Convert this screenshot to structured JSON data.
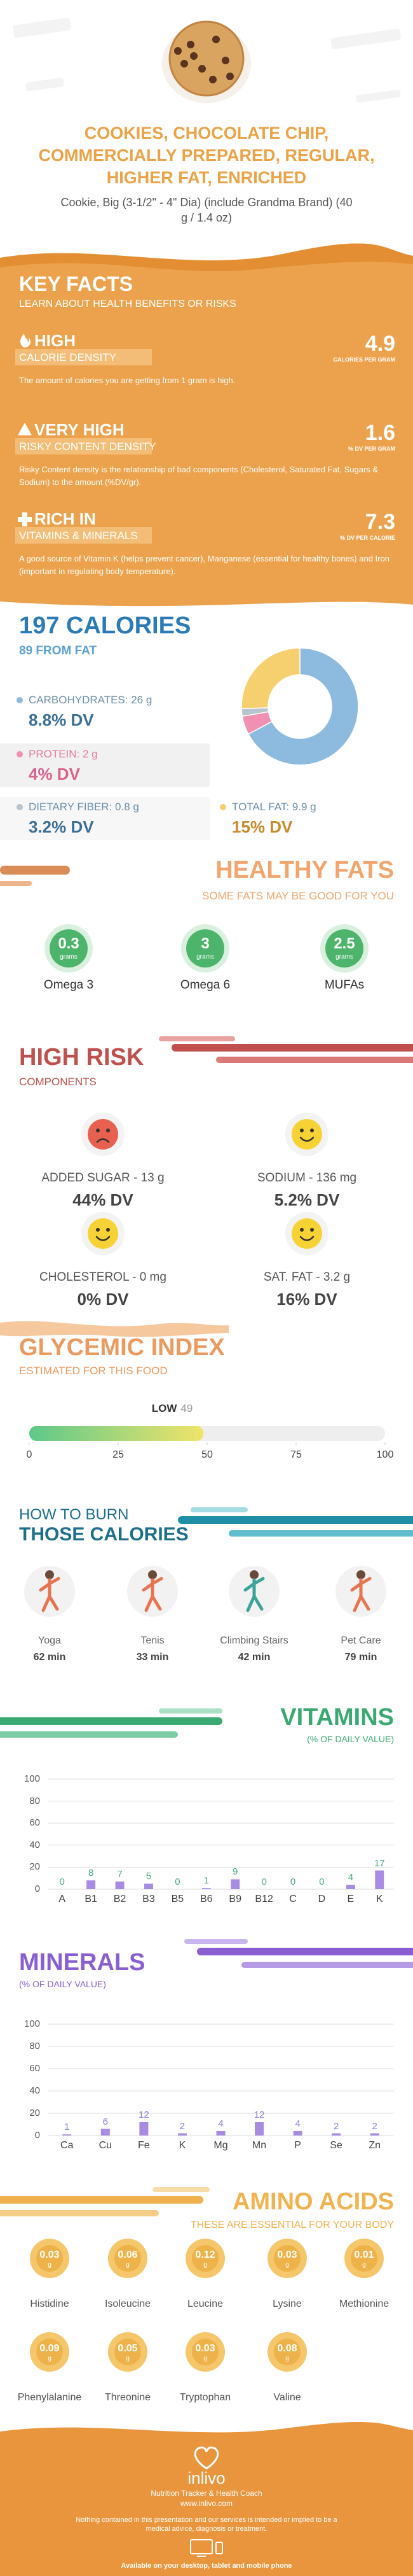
{
  "header": {
    "title": "COOKIES, CHOCOLATE CHIP, COMMERCIALLY PREPARED, REGULAR, HIGHER FAT, ENRICHED",
    "subtitle": "Cookie, Big (3-1/2\" - 4\" Dia) (include Grandma Brand) (40 g / 1.4 oz)"
  },
  "key_facts": {
    "title": "KEY FACTS",
    "subtitle": "LEARN ABOUT HEALTH BENEFITS OR RISKS",
    "facts": [
      {
        "level": "HIGH",
        "name": "CALORIE DENSITY",
        "value": 4.9,
        "unit": "CALORIES PER GRAM",
        "description": "The amount of calories you are getting from 1 gram is high."
      },
      {
        "level": "VERY HIGH",
        "name": "RISKY CONTENT DENSITY",
        "value": 1.6,
        "unit": "% DV PER GRAM",
        "description": "Risky Content density is the relationship of bad components (Cholesterol, Saturated Fat, Sugars & Sodium) to the amount (%DV/gr)."
      },
      {
        "level": "RICH IN",
        "name": "VITAMINS & MINERALS",
        "value": 7.3,
        "unit": "% DV PER CALORIE",
        "description": "A good source of Vitamin K (helps prevent cancer), Manganese (essential for healthy bones) and Iron (important in regulating body temperature)."
      }
    ]
  },
  "calories": {
    "title": "197 CALORIES",
    "subtitle": "89 FROM FAT",
    "macros": [
      {
        "label": "CARBOHYDRATES: 26 g",
        "value": 26,
        "dv": "8.8% DV",
        "color": "#8dbbe0"
      },
      {
        "label": "PROTEIN: 2 g",
        "value": 2,
        "dv": "4% DV",
        "color": "#f090b2"
      },
      {
        "label": "DIETARY FIBER: 0.8 g",
        "value": 0.8,
        "dv": "3.2% DV",
        "color": "#b8c4ce"
      },
      {
        "label": "TOTAL FAT: 9.9 g",
        "value": 9.9,
        "dv": "15% DV",
        "color": "#f6d06e"
      }
    ]
  },
  "healthy_fats": {
    "title": "HEALTHY FATS",
    "subtitle": "SOME FATS MAY BE GOOD FOR YOU",
    "items": [
      {
        "value": 0.3,
        "unit": "grams",
        "name": "Omega 3"
      },
      {
        "value": 3,
        "unit": "grams",
        "name": "Omega 6"
      },
      {
        "value": 2.5,
        "unit": "grams",
        "name": "MUFAs"
      }
    ]
  },
  "high_risk": {
    "title": "HIGH RISK",
    "subtitle": "COMPONENTS",
    "items": [
      {
        "label": "ADDED SUGAR - 13 g",
        "dv": "44% DV",
        "color": "#e8604f"
      },
      {
        "label": "SODIUM - 136 mg",
        "dv": "5.2% DV",
        "color": "#f7d235"
      },
      {
        "label": "CHOLESTEROL - 0 mg",
        "dv": "0% DV",
        "color": "#f7d235"
      },
      {
        "label": "SAT. FAT - 3.2 g",
        "dv": "16% DV",
        "color": "#f7d235"
      }
    ]
  },
  "chart_data": [
    {
      "type": "gauge",
      "title": "GLYCEMIC INDEX",
      "subtitle": "ESTIMATED FOR THIS FOOD",
      "label": "LOW",
      "value": 49,
      "xlim": [
        0,
        100
      ],
      "xticks": [
        0,
        25,
        50,
        75,
        100
      ]
    },
    {
      "type": "bar",
      "title": "VITAMINS",
      "subtitle": "(% OF DAILY VALUE)",
      "categories": [
        "A",
        "B1",
        "B2",
        "B3",
        "B5",
        "B6",
        "B9",
        "B12",
        "C",
        "D",
        "E",
        "K"
      ],
      "values": [
        0,
        8,
        7,
        5,
        0,
        1,
        9,
        0,
        0,
        0,
        4,
        17
      ],
      "ylim": [
        0,
        100
      ],
      "yticks": [
        0,
        20,
        40,
        60,
        80,
        100
      ],
      "grid": true,
      "color": "#a78ce2"
    },
    {
      "type": "bar",
      "title": "MINERALS",
      "subtitle": "(% OF DAILY VALUE)",
      "categories": [
        "Ca",
        "Cu",
        "Fe",
        "K",
        "Mg",
        "Mn",
        "P",
        "Se",
        "Zn"
      ],
      "values": [
        1,
        6,
        12,
        2,
        4,
        12,
        4,
        2,
        2
      ],
      "ylim": [
        0,
        100
      ],
      "yticks": [
        0,
        20,
        40,
        60,
        80,
        100
      ],
      "grid": true,
      "color": "#a78ce2"
    }
  ],
  "burn": {
    "title": "HOW TO BURN",
    "subtitle": "THOSE CALORIES",
    "activities": [
      {
        "name": "Yoga",
        "time": "62 min"
      },
      {
        "name": "Tenis",
        "time": "33 min"
      },
      {
        "name": "Climbing Stairs",
        "time": "42 min"
      },
      {
        "name": "Pet Care",
        "time": "79 min"
      }
    ]
  },
  "amino_acids": {
    "title": "AMINO ACIDS",
    "subtitle": "THESE ARE ESSENTIAL FOR YOUR BODY",
    "items": [
      {
        "name": "Histidine",
        "value": 0.03,
        "unit": "g"
      },
      {
        "name": "Isoleucine",
        "value": 0.06,
        "unit": "g"
      },
      {
        "name": "Leucine",
        "value": 0.12,
        "unit": "g"
      },
      {
        "name": "Lysine",
        "value": 0.03,
        "unit": "g"
      },
      {
        "name": "Methionine",
        "value": 0.01,
        "unit": "g"
      },
      {
        "name": "Phenylalanine",
        "value": 0.09,
        "unit": "g"
      },
      {
        "name": "Threonine",
        "value": 0.05,
        "unit": "g"
      },
      {
        "name": "Tryptophan",
        "value": 0.03,
        "unit": "g"
      },
      {
        "name": "Valine",
        "value": 0.08,
        "unit": "g"
      }
    ]
  },
  "footer": {
    "brand": "inlivo",
    "tagline": "Nutrition Tracker & Health Coach",
    "url": "www.inlivo.com",
    "disclaimer": "Nothing contained in this presentation and our services is intended or implied to be a medical advice, diagnosis or treatment.",
    "availability": "Available on your desktop, tablet and mobile phone"
  }
}
